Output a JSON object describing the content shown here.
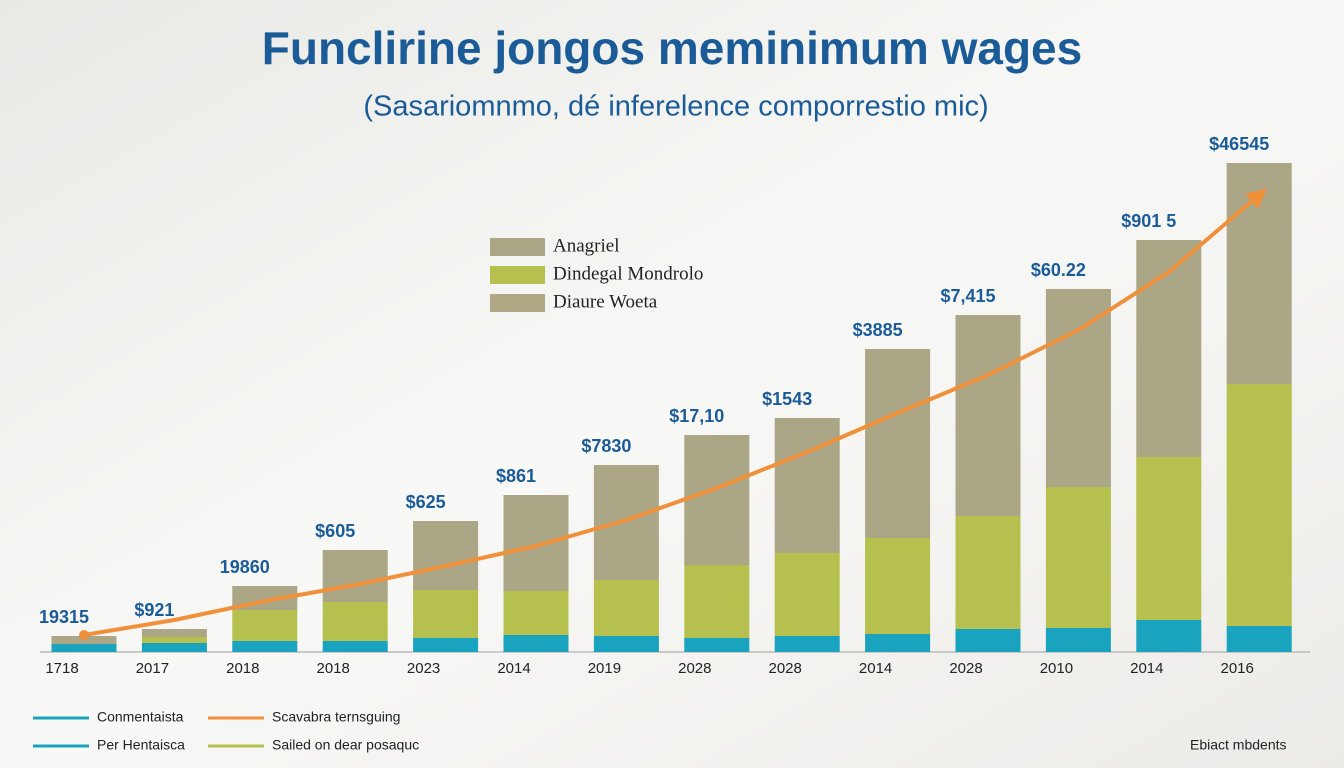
{
  "chart_data": {
    "type": "bar",
    "title": "Funclirine jongos meminimum wages",
    "subtitle": "(Sasariomnmo, dé inferelence comporrestio mic)",
    "categories": [
      "1718",
      "2017",
      "2018",
      "2018",
      "2023",
      "2014",
      "2019",
      "2028",
      "2028",
      "2014",
      "2028",
      "2010",
      "2014",
      "2016"
    ],
    "stacked": true,
    "ylim": [
      0,
      500
    ],
    "series": [
      {
        "color": "#1aa3bf",
        "values": [
          8,
          9,
          11,
          11,
          14,
          17,
          16,
          14,
          16,
          18,
          23,
          24,
          32,
          26
        ]
      },
      {
        "color": "#b5c04f",
        "values": [
          0,
          6,
          31,
          39,
          48,
          44,
          56,
          73,
          83,
          96,
          113,
          141,
          163,
          242
        ]
      },
      {
        "color": "#aba685",
        "values": [
          8,
          8,
          24,
          52,
          69,
          96,
          115,
          130,
          135,
          189,
          201,
          198,
          217,
          221
        ]
      }
    ],
    "trend": {
      "color": "#f0903a",
      "values": [
        17,
        32,
        51,
        67,
        86,
        106,
        132,
        164,
        200,
        239,
        277,
        322,
        380,
        457
      ]
    },
    "annotations": [
      "19315",
      "$921",
      "19860",
      "$605",
      "$625",
      "$861",
      "$7830",
      "$17,10",
      "$1543",
      "$3885",
      "$7,415",
      "$60.22",
      "$901 5",
      "$46545"
    ],
    "legend": [
      {
        "name": "Anagriel",
        "color": "#aba685"
      },
      {
        "name": "Dindegal Mondrolo",
        "color": "#b5c04f"
      },
      {
        "name": "Diaure Woeta",
        "color": "#b0a884"
      }
    ],
    "bottom_legend": [
      {
        "name": "Conmentaista",
        "color": "#1aa3bf"
      },
      {
        "name": "Scavabra ternsguing",
        "color": "#f0903a"
      },
      {
        "name": "Per Hentaisca",
        "color": "#1aa3bf"
      },
      {
        "name": "Sailed on dear posaquc",
        "color": "#b5c04f"
      }
    ],
    "footnote": "Ebiact mbdents"
  }
}
